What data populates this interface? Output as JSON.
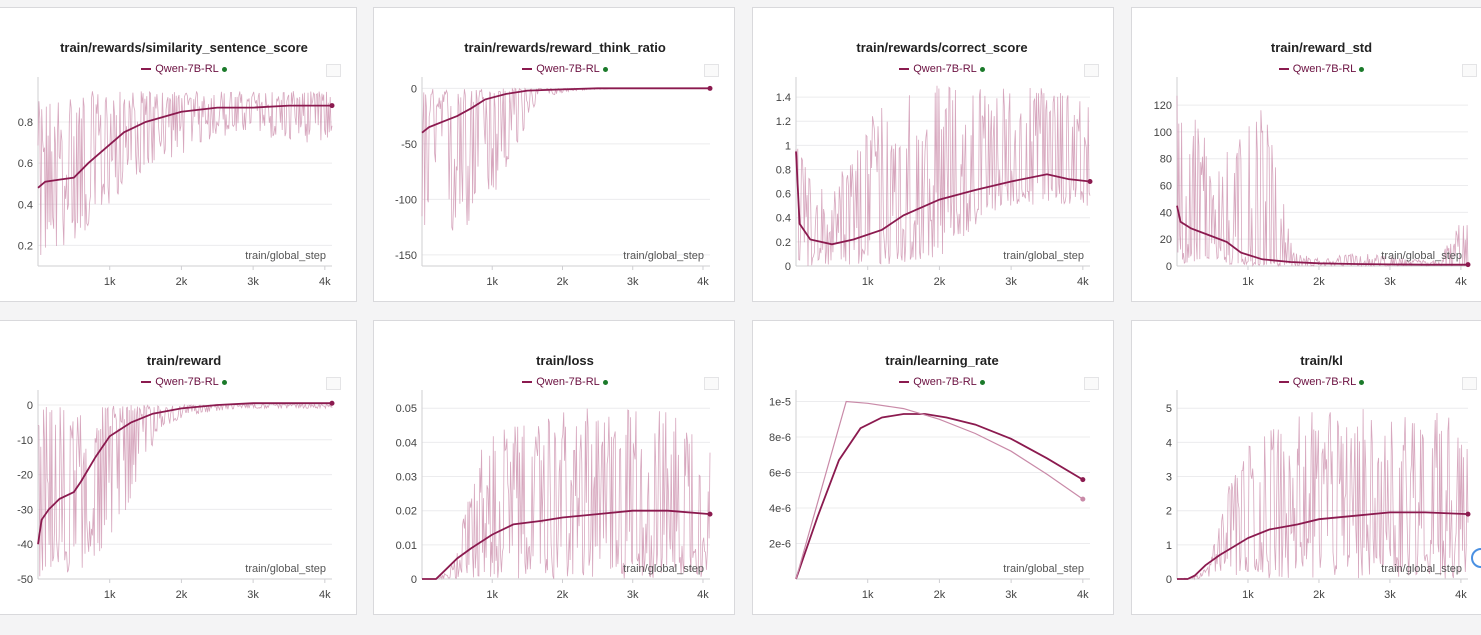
{
  "series_name": "Qwen-7B-RL",
  "colors": {
    "smooth": "#8b1a4f",
    "raw": "#c98aa8",
    "status_dot": "#1b7a2a"
  },
  "chart_data": [
    {
      "type": "line",
      "title": "train/rewards/similarity_sentence_score",
      "xlabel": "train/global_step",
      "xlim": [
        0,
        4100
      ],
      "ylim": [
        0.1,
        0.98
      ],
      "yticks": [
        0.2,
        0.4,
        0.6,
        0.8
      ],
      "ytick_labels": [
        "0.2",
        "0.4",
        "0.6",
        "0.8"
      ],
      "xticks": [
        1000,
        2000,
        3000,
        4000
      ],
      "xtick_labels": [
        "1k",
        "2k",
        "3k",
        "4k"
      ],
      "series": [
        {
          "name": "Qwen-7B-RL",
          "x": [
            0,
            100,
            300,
            500,
            700,
            900,
            1200,
            1500,
            2000,
            2500,
            3000,
            3500,
            4000,
            4100
          ],
          "y": [
            0.48,
            0.51,
            0.52,
            0.53,
            0.6,
            0.66,
            0.75,
            0.8,
            0.85,
            0.87,
            0.87,
            0.88,
            0.88,
            0.88
          ]
        }
      ],
      "raw_band": {
        "low": [
          0.12,
          0.2,
          0.3,
          0.5,
          0.6,
          0.65,
          0.72,
          0.75,
          0.72,
          0.7,
          0.7
        ],
        "high": [
          0.9,
          0.95,
          0.95,
          0.95,
          0.95,
          0.95,
          0.95,
          0.95,
          0.95,
          0.95,
          0.95
        ]
      }
    },
    {
      "type": "line",
      "title": "train/rewards/reward_think_ratio",
      "xlabel": "train/global_step",
      "xlim": [
        0,
        4100
      ],
      "ylim": [
        -160,
        3
      ],
      "yticks": [
        0,
        -50,
        -100,
        -150
      ],
      "ytick_labels": [
        "0",
        "-50",
        "-100",
        "-150"
      ],
      "xticks": [
        1000,
        2000,
        3000,
        4000
      ],
      "xtick_labels": [
        "1k",
        "2k",
        "3k",
        "4k"
      ],
      "series": [
        {
          "name": "Qwen-7B-RL",
          "x": [
            0,
            100,
            300,
            500,
            700,
            900,
            1200,
            1500,
            2000,
            2500,
            3000,
            3500,
            4000,
            4100
          ],
          "y": [
            -40,
            -35,
            -30,
            -25,
            -18,
            -10,
            -5,
            -2,
            -1,
            0,
            0,
            0,
            0,
            0
          ]
        }
      ],
      "raw_band": {
        "low": [
          -150,
          -140,
          -120,
          -80,
          -10,
          -3,
          -1,
          0,
          0,
          0,
          0
        ],
        "high": [
          0,
          0,
          0,
          0,
          0,
          0,
          0,
          0,
          0,
          0,
          0
        ]
      }
    },
    {
      "type": "line",
      "title": "train/rewards/correct_score",
      "xlabel": "train/global_step",
      "xlim": [
        0,
        4100
      ],
      "ylim": [
        0,
        1.5
      ],
      "yticks": [
        0,
        0.2,
        0.4,
        0.6,
        0.8,
        1,
        1.2,
        1.4
      ],
      "ytick_labels": [
        "0",
        "0.2",
        "0.4",
        "0.6",
        "0.8",
        "1",
        "1.2",
        "1.4"
      ],
      "xticks": [
        1000,
        2000,
        3000,
        4000
      ],
      "xtick_labels": [
        "1k",
        "2k",
        "3k",
        "4k"
      ],
      "series": [
        {
          "name": "Qwen-7B-RL",
          "x": [
            0,
            50,
            200,
            500,
            800,
            1200,
            1500,
            2000,
            2500,
            3000,
            3500,
            3800,
            4100
          ],
          "y": [
            0.95,
            0.35,
            0.22,
            0.18,
            0.22,
            0.3,
            0.42,
            0.55,
            0.63,
            0.7,
            0.76,
            0.72,
            0.7
          ]
        }
      ],
      "raw_band": {
        "low": [
          0,
          0,
          0,
          0,
          0,
          0.1,
          0.3,
          0.5,
          0.5,
          0.5,
          0.5
        ],
        "high": [
          1.0,
          0.6,
          1.0,
          1.5,
          1.5,
          1.5,
          1.5,
          1.5,
          1.5,
          1.5,
          1.5
        ]
      }
    },
    {
      "type": "line",
      "title": "train/reward_std",
      "xlabel": "train/global_step",
      "xlim": [
        0,
        4100
      ],
      "ylim": [
        0,
        135
      ],
      "yticks": [
        0,
        20,
        40,
        60,
        80,
        100,
        120
      ],
      "ytick_labels": [
        "0",
        "20",
        "40",
        "60",
        "80",
        "100",
        "120"
      ],
      "xticks": [
        1000,
        2000,
        3000,
        4000
      ],
      "xtick_labels": [
        "1k",
        "2k",
        "3k",
        "4k"
      ],
      "series": [
        {
          "name": "Qwen-7B-RL",
          "x": [
            0,
            50,
            200,
            500,
            700,
            900,
            1200,
            1600,
            2000,
            2500,
            3000,
            3500,
            4100
          ],
          "y": [
            45,
            33,
            28,
            22,
            18,
            10,
            5,
            3,
            2,
            1.5,
            1.2,
            1,
            1
          ]
        }
      ],
      "raw_band": {
        "low": [
          0,
          0,
          0,
          0,
          0,
          0,
          0,
          0,
          0,
          0,
          0
        ],
        "high": [
          130,
          100,
          90,
          120,
          10,
          5,
          10,
          8,
          5,
          5,
          45
        ]
      }
    },
    {
      "type": "line",
      "title": "train/reward",
      "xlabel": "train/global_step",
      "xlim": [
        0,
        4100
      ],
      "ylim": [
        -50,
        2
      ],
      "yticks": [
        0,
        -10,
        -20,
        -30,
        -40,
        -50
      ],
      "ytick_labels": [
        "0",
        "-10",
        "-20",
        "-30",
        "-40",
        "-50"
      ],
      "xticks": [
        1000,
        2000,
        3000,
        4000
      ],
      "xtick_labels": [
        "1k",
        "2k",
        "3k",
        "4k"
      ],
      "series": [
        {
          "name": "Qwen-7B-RL",
          "x": [
            0,
            50,
            150,
            300,
            500,
            600,
            800,
            1000,
            1300,
            1600,
            2000,
            2500,
            3000,
            3500,
            4100
          ],
          "y": [
            -40,
            -33,
            -30,
            -27,
            -25,
            -22,
            -15,
            -9,
            -5,
            -2.5,
            -1,
            0,
            0.5,
            0.5,
            0.5
          ]
        }
      ],
      "raw_band": {
        "low": [
          -50,
          -50,
          -45,
          -30,
          -10,
          -3,
          -2,
          -1,
          -1,
          -1,
          -1
        ],
        "high": [
          0,
          0,
          0,
          0,
          0,
          0,
          0,
          0,
          0,
          0,
          0
        ]
      }
    },
    {
      "type": "line",
      "title": "train/loss",
      "xlabel": "train/global_step",
      "xlim": [
        0,
        4100
      ],
      "ylim": [
        0,
        0.053
      ],
      "yticks": [
        0,
        0.01,
        0.02,
        0.03,
        0.04,
        0.05
      ],
      "ytick_labels": [
        "0",
        "0.01",
        "0.02",
        "0.03",
        "0.04",
        "0.05"
      ],
      "xticks": [
        1000,
        2000,
        3000,
        4000
      ],
      "xtick_labels": [
        "1k",
        "2k",
        "3k",
        "4k"
      ],
      "series": [
        {
          "name": "Qwen-7B-RL",
          "x": [
            0,
            200,
            300,
            500,
            700,
            1000,
            1300,
            1700,
            2000,
            2500,
            3000,
            3500,
            4100
          ],
          "y": [
            0,
            0,
            0.002,
            0.006,
            0.009,
            0.013,
            0.016,
            0.017,
            0.018,
            0.019,
            0.02,
            0.02,
            0.019
          ]
        }
      ],
      "raw_band": {
        "low": [
          0,
          0,
          0,
          0,
          0,
          0,
          0,
          0,
          0,
          0,
          0
        ],
        "high": [
          0,
          0,
          0.04,
          0.045,
          0.045,
          0.05,
          0.05,
          0.05,
          0.05,
          0.05,
          0.045
        ]
      }
    },
    {
      "type": "line",
      "title": "train/learning_rate",
      "xlabel": "train/global_step",
      "xlim": [
        0,
        4100
      ],
      "ylim": [
        0,
        1.02e-05
      ],
      "yticks": [
        2e-06,
        4e-06,
        6e-06,
        8e-06,
        1e-05
      ],
      "ytick_labels": [
        "2e-6",
        "4e-6",
        "6e-6",
        "8e-6",
        "1e-5"
      ],
      "xticks": [
        1000,
        2000,
        3000,
        4000
      ],
      "xtick_labels": [
        "1k",
        "2k",
        "3k",
        "4k"
      ],
      "series": [
        {
          "name": "Qwen-7B-RL",
          "x": [
            0,
            300,
            600,
            900,
            1200,
            1500,
            1800,
            2100,
            2500,
            3000,
            3500,
            4000
          ],
          "y": [
            0,
            3.5e-06,
            6.7e-06,
            8.5e-06,
            9.1e-06,
            9.3e-06,
            9.3e-06,
            9.1e-06,
            8.7e-06,
            7.9e-06,
            6.8e-06,
            5.6e-06
          ]
        },
        {
          "name": "Qwen-7B-RL",
          "x": [
            0,
            700,
            1000,
            1500,
            2000,
            2500,
            3000,
            3500,
            4000
          ],
          "y": [
            0,
            1e-05,
            9.9e-06,
            9.6e-06,
            9e-06,
            8.2e-06,
            7.2e-06,
            5.9e-06,
            4.5e-06
          ]
        }
      ]
    },
    {
      "type": "line",
      "title": "train/kl",
      "xlabel": "train/global_step",
      "xlim": [
        0,
        4100
      ],
      "ylim": [
        0,
        5.3
      ],
      "yticks": [
        0,
        1,
        2,
        3,
        4,
        5
      ],
      "ytick_labels": [
        "0",
        "1",
        "2",
        "3",
        "4",
        "5"
      ],
      "xticks": [
        1000,
        2000,
        3000,
        4000
      ],
      "xtick_labels": [
        "1k",
        "2k",
        "3k",
        "4k"
      ],
      "series": [
        {
          "name": "Qwen-7B-RL",
          "x": [
            0,
            150,
            250,
            400,
            600,
            800,
            1000,
            1300,
            1700,
            2000,
            2500,
            3000,
            3500,
            4100
          ],
          "y": [
            0,
            0,
            0.1,
            0.4,
            0.7,
            0.95,
            1.2,
            1.45,
            1.6,
            1.75,
            1.85,
            1.95,
            1.95,
            1.9
          ]
        }
      ],
      "raw_band": {
        "low": [
          0,
          0,
          0,
          0,
          0,
          0,
          0,
          0,
          0,
          0,
          0
        ],
        "high": [
          0,
          0.1,
          3.5,
          4.5,
          4.7,
          5.0,
          5.0,
          5.0,
          5.0,
          5.0,
          4.5
        ]
      }
    }
  ]
}
